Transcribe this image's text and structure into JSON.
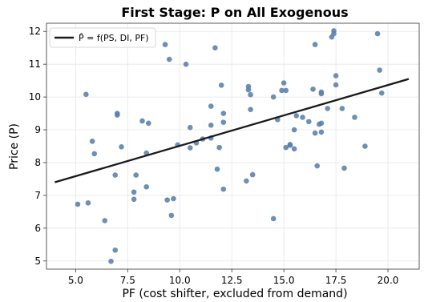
{
  "chart_data": {
    "type": "scatter",
    "title": "First Stage: P on All Exogenous",
    "xlabel": "PF (cost shifter, excluded from demand)",
    "ylabel": "Price (P)",
    "xlim": [
      3.6,
      21.5
    ],
    "ylim": [
      4.75,
      12.25
    ],
    "xticks": [
      5.0,
      7.5,
      10.0,
      12.5,
      15.0,
      17.5,
      20.0
    ],
    "xtick_labels": [
      "5.0",
      "7.5",
      "10.0",
      "12.5",
      "15.0",
      "17.5",
      "20.0"
    ],
    "yticks": [
      5,
      6,
      7,
      8,
      9,
      10,
      11,
      12
    ],
    "ytick_labels": [
      "5",
      "6",
      "7",
      "8",
      "9",
      "10",
      "11",
      "12"
    ],
    "grid": true,
    "legend_position": "top-left",
    "point_color": "#5a7fab",
    "line_color": "#1a1a1a",
    "fit_line": {
      "name": "P̂ = f(PS, DI, PF)",
      "x": [
        4.0,
        21.0
      ],
      "y": [
        7.4,
        10.55
      ]
    },
    "series": [
      {
        "points": [
          [
            5.1,
            6.73
          ],
          [
            5.6,
            6.77
          ],
          [
            5.5,
            10.08
          ],
          [
            5.8,
            8.65
          ],
          [
            5.9,
            8.27
          ],
          [
            6.4,
            6.23
          ],
          [
            6.7,
            4.99
          ],
          [
            6.9,
            5.33
          ],
          [
            6.9,
            7.62
          ],
          [
            7.0,
            9.5
          ],
          [
            7.0,
            9.45
          ],
          [
            7.2,
            8.48
          ],
          [
            7.8,
            6.88
          ],
          [
            7.8,
            7.1
          ],
          [
            7.9,
            7.62
          ],
          [
            8.2,
            9.27
          ],
          [
            8.4,
            8.29
          ],
          [
            8.4,
            7.26
          ],
          [
            8.5,
            9.2
          ],
          [
            9.3,
            11.6
          ],
          [
            9.4,
            6.86
          ],
          [
            9.5,
            11.15
          ],
          [
            9.6,
            6.39
          ],
          [
            9.7,
            6.9
          ],
          [
            9.9,
            8.54
          ],
          [
            10.3,
            11.0
          ],
          [
            10.5,
            9.07
          ],
          [
            10.5,
            8.45
          ],
          [
            10.8,
            8.6
          ],
          [
            11.1,
            8.72
          ],
          [
            11.5,
            8.75
          ],
          [
            11.5,
            9.14
          ],
          [
            11.5,
            9.72
          ],
          [
            11.7,
            11.5
          ],
          [
            11.8,
            7.8
          ],
          [
            11.9,
            8.46
          ],
          [
            12.0,
            10.36
          ],
          [
            12.1,
            7.19
          ],
          [
            12.1,
            9.23
          ],
          [
            12.1,
            9.5
          ],
          [
            13.2,
            7.44
          ],
          [
            13.3,
            10.22
          ],
          [
            13.3,
            10.32
          ],
          [
            13.4,
            9.62
          ],
          [
            13.4,
            10.07
          ],
          [
            13.5,
            7.63
          ],
          [
            14.5,
            10.0
          ],
          [
            14.5,
            6.29
          ],
          [
            14.7,
            9.31
          ],
          [
            14.9,
            10.2
          ],
          [
            15.0,
            10.43
          ],
          [
            15.1,
            10.2
          ],
          [
            15.1,
            8.46
          ],
          [
            15.3,
            8.55
          ],
          [
            15.3,
            8.53
          ],
          [
            15.5,
            9.0
          ],
          [
            15.5,
            8.42
          ],
          [
            15.6,
            9.43
          ],
          [
            15.9,
            9.38
          ],
          [
            16.2,
            9.25
          ],
          [
            16.4,
            10.24
          ],
          [
            16.5,
            11.6
          ],
          [
            16.5,
            8.9
          ],
          [
            16.6,
            7.9
          ],
          [
            16.7,
            9.17
          ],
          [
            16.8,
            10.1
          ],
          [
            16.8,
            10.15
          ],
          [
            16.8,
            9.2
          ],
          [
            16.8,
            8.93
          ],
          [
            17.1,
            9.65
          ],
          [
            17.3,
            11.83
          ],
          [
            17.4,
            12.02
          ],
          [
            17.4,
            11.93
          ],
          [
            17.5,
            10.37
          ],
          [
            17.5,
            10.65
          ],
          [
            17.8,
            9.65
          ],
          [
            17.9,
            7.83
          ],
          [
            18.4,
            9.38
          ],
          [
            18.9,
            8.5
          ],
          [
            19.5,
            11.93
          ],
          [
            19.6,
            10.82
          ],
          [
            19.7,
            10.12
          ]
        ]
      }
    ]
  }
}
